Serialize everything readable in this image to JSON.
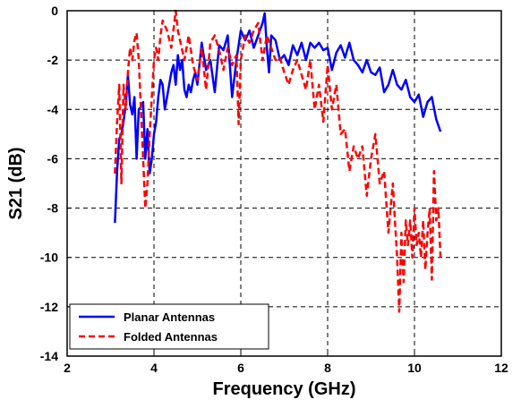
{
  "chart_data": {
    "type": "line",
    "title": "",
    "xlabel": "Frequency (GHz)",
    "ylabel": "S21 (dB)",
    "xlim": [
      2,
      12
    ],
    "ylim": [
      -14,
      0
    ],
    "x_ticks": [
      2,
      4,
      6,
      8,
      10,
      12
    ],
    "y_ticks": [
      -14,
      -12,
      -10,
      -8,
      -6,
      -4,
      -2,
      0
    ],
    "x_tick_labels": [
      "2",
      "4",
      "6",
      "8",
      "10",
      "12"
    ],
    "y_tick_labels": [
      "-14",
      "-12",
      "-10",
      "-8",
      "-6",
      "-4",
      "-2",
      "0"
    ],
    "grid": true,
    "legend_position": "bottom-left",
    "series": [
      {
        "name": "Planar Antennas",
        "color": "#0000ff",
        "line_style": "solid",
        "x": [
          3.1,
          3.15,
          3.2,
          3.25,
          3.3,
          3.35,
          3.4,
          3.45,
          3.5,
          3.55,
          3.6,
          3.65,
          3.7,
          3.75,
          3.8,
          3.85,
          3.9,
          3.95,
          4.0,
          4.05,
          4.1,
          4.15,
          4.2,
          4.25,
          4.3,
          4.35,
          4.4,
          4.45,
          4.5,
          4.55,
          4.6,
          4.65,
          4.7,
          4.75,
          4.8,
          4.85,
          4.9,
          4.95,
          5.0,
          5.1,
          5.2,
          5.3,
          5.4,
          5.5,
          5.6,
          5.7,
          5.8,
          5.9,
          6.0,
          6.1,
          6.2,
          6.3,
          6.4,
          6.5,
          6.55,
          6.6,
          6.65,
          6.7,
          6.8,
          6.9,
          7.0,
          7.1,
          7.2,
          7.3,
          7.4,
          7.5,
          7.6,
          7.7,
          7.8,
          7.9,
          8.0,
          8.1,
          8.2,
          8.3,
          8.4,
          8.5,
          8.6,
          8.7,
          8.8,
          8.9,
          9.0,
          9.1,
          9.2,
          9.3,
          9.4,
          9.5,
          9.6,
          9.7,
          9.8,
          9.9,
          10.0,
          10.1,
          10.2,
          10.3,
          10.4,
          10.5,
          10.6
        ],
        "y": [
          -8.6,
          -6.5,
          -5.2,
          -5.0,
          -4.5,
          -3.8,
          -2.6,
          -3.8,
          -4.2,
          -3.5,
          -6.0,
          -4.0,
          -3.9,
          -3.7,
          -6.0,
          -4.8,
          -6.6,
          -6.0,
          -5.0,
          -4.5,
          -3.5,
          -2.8,
          -3.0,
          -4.0,
          -3.5,
          -3.0,
          -2.5,
          -2.2,
          -3.0,
          -1.8,
          -2.4,
          -2.0,
          -3.2,
          -3.5,
          -3.0,
          -3.3,
          -2.8,
          -2.5,
          -3.0,
          -1.3,
          -2.4,
          -2.0,
          -3.3,
          -1.4,
          -1.6,
          -1.0,
          -3.5,
          -2.0,
          -0.8,
          -1.2,
          -0.8,
          -1.5,
          -1.0,
          -0.5,
          -0.1,
          -1.5,
          -2.5,
          -1.0,
          -1.2,
          -2.0,
          -1.8,
          -2.2,
          -1.4,
          -1.8,
          -1.3,
          -2.0,
          -1.3,
          -1.5,
          -1.3,
          -1.6,
          -1.5,
          -2.4,
          -1.7,
          -1.4,
          -1.9,
          -1.3,
          -2.0,
          -2.2,
          -2.5,
          -2.0,
          -2.5,
          -2.6,
          -2.3,
          -3.3,
          -3.0,
          -2.4,
          -3.0,
          -3.2,
          -2.8,
          -3.5,
          -3.7,
          -3.4,
          -4.3,
          -3.7,
          -3.5,
          -4.4,
          -4.9
        ]
      },
      {
        "name": "Folded Antennas",
        "color": "#ff0000",
        "line_style": "dashed",
        "x": [
          3.1,
          3.15,
          3.2,
          3.25,
          3.3,
          3.35,
          3.4,
          3.45,
          3.5,
          3.55,
          3.6,
          3.65,
          3.7,
          3.75,
          3.8,
          3.85,
          3.9,
          3.95,
          4.0,
          4.05,
          4.1,
          4.15,
          4.2,
          4.3,
          4.4,
          4.5,
          4.55,
          4.6,
          4.7,
          4.8,
          4.9,
          5.0,
          5.1,
          5.2,
          5.3,
          5.4,
          5.5,
          5.6,
          5.7,
          5.8,
          5.9,
          5.95,
          6.0,
          6.1,
          6.2,
          6.3,
          6.4,
          6.5,
          6.6,
          6.7,
          6.8,
          6.9,
          7.0,
          7.1,
          7.2,
          7.3,
          7.4,
          7.5,
          7.6,
          7.7,
          7.8,
          7.9,
          8.0,
          8.1,
          8.2,
          8.3,
          8.4,
          8.5,
          8.6,
          8.7,
          8.8,
          8.9,
          9.0,
          9.1,
          9.2,
          9.3,
          9.4,
          9.5,
          9.55,
          9.6,
          9.65,
          9.7,
          9.75,
          9.8,
          9.85,
          9.9,
          9.95,
          10.0,
          10.05,
          10.1,
          10.15,
          10.2,
          10.25,
          10.3,
          10.35,
          10.4,
          10.45,
          10.5,
          10.55,
          10.6
        ],
        "y": [
          -6.6,
          -4.5,
          -3.0,
          -7.0,
          -3.0,
          -4.0,
          -2.5,
          -1.5,
          -2.0,
          -1.2,
          -0.9,
          -2.0,
          -4.0,
          -6.0,
          -8.0,
          -7.0,
          -5.0,
          -3.5,
          -2.0,
          -1.5,
          -2.0,
          -1.0,
          -0.4,
          -0.8,
          -1.5,
          0.0,
          -0.8,
          -1.2,
          -2.0,
          -1.0,
          -2.2,
          -2.8,
          -1.5,
          -3.2,
          -1.3,
          -1.0,
          -1.6,
          -2.4,
          -1.5,
          -2.2,
          -1.8,
          -4.6,
          -2.0,
          -1.0,
          -1.3,
          -0.8,
          -0.5,
          -2.0,
          -1.0,
          -1.5,
          -2.0,
          -1.9,
          -2.5,
          -3.0,
          -2.4,
          -2.0,
          -2.6,
          -3.2,
          -2.0,
          -4.0,
          -3.0,
          -4.5,
          -2.2,
          -4.0,
          -3.0,
          -5.0,
          -4.8,
          -6.5,
          -5.5,
          -6.0,
          -5.5,
          -7.5,
          -6.0,
          -5.0,
          -7.0,
          -6.5,
          -9.0,
          -7.0,
          -8.5,
          -10.0,
          -12.2,
          -9.0,
          -11.0,
          -8.5,
          -9.5,
          -8.5,
          -10.0,
          -8.0,
          -9.5,
          -9.0,
          -10.0,
          -8.5,
          -10.5,
          -9.0,
          -8.0,
          -10.9,
          -6.5,
          -8.5,
          -8.0,
          -10.0
        ]
      }
    ]
  }
}
